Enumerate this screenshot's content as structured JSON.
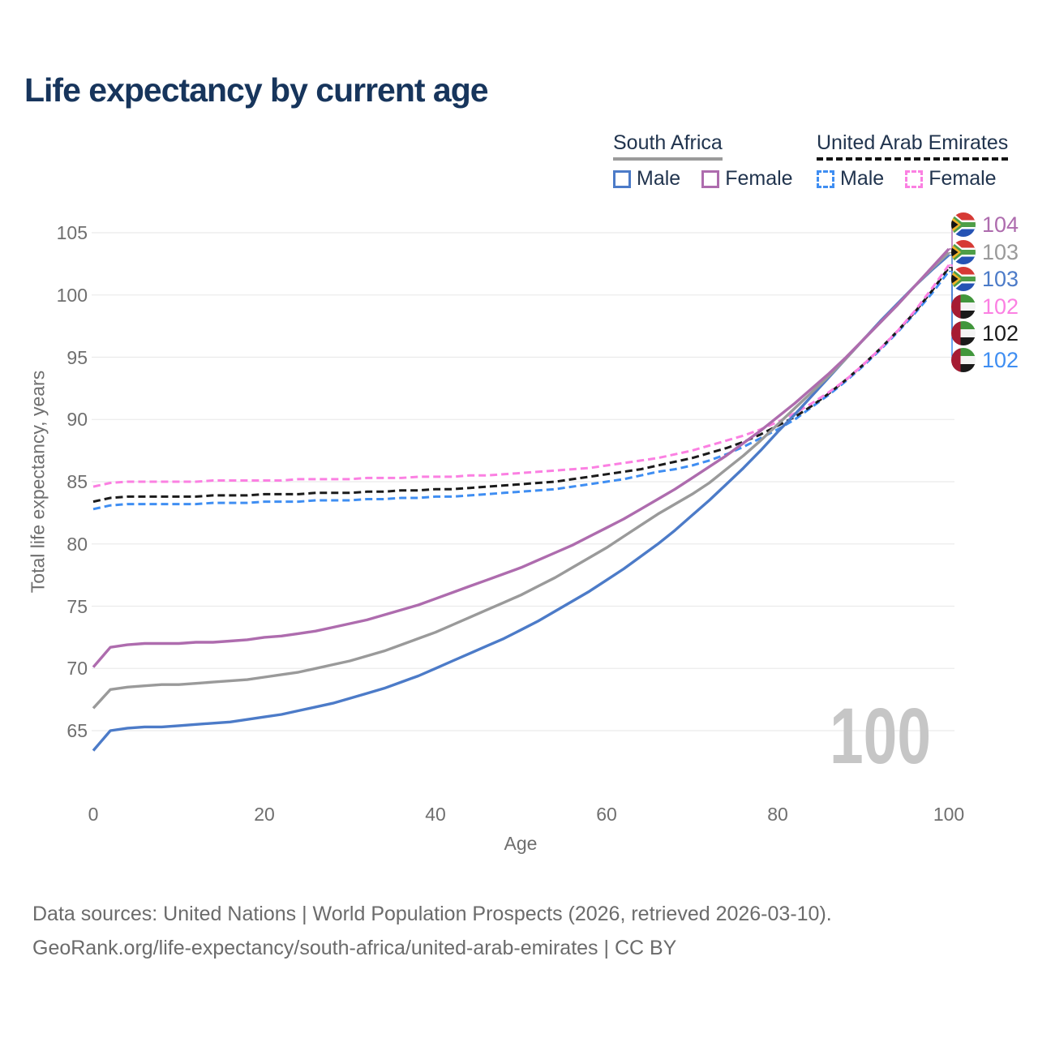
{
  "title": "Life expectancy by current age",
  "colors": {
    "title_text": "#17355c",
    "legend_text": "#21344e",
    "axis_text": "#6f6f6f",
    "footer_text": "#6b6b6b",
    "grid": "#ebebeb",
    "watermark": "#c6c6c6",
    "sa_male": "#4c7bc8",
    "sa_female": "#ae6cae",
    "sa_total": "#9a9a9a",
    "uae_male": "#3f8ef2",
    "uae_female": "#fb80e2",
    "uae_total": "#1b1b1b"
  },
  "legend": {
    "sa": {
      "title": "South Africa",
      "male_label": "Male",
      "female_label": "Female",
      "underline_color": "#9a9a9a",
      "underline_style": "solid"
    },
    "uae": {
      "title": "United Arab Emirates",
      "male_label": "Male",
      "female_label": "Female",
      "underline_color": "#141414",
      "underline_style": "dashed"
    }
  },
  "chart_data": {
    "type": "line",
    "title": "Life expectancy by current age",
    "xlabel": "Age",
    "ylabel": "Total life expectancy, years",
    "xlim": [
      0,
      100
    ],
    "ylim": [
      62,
      106
    ],
    "xticks": [
      0,
      20,
      40,
      60,
      80,
      100
    ],
    "yticks": [
      65,
      70,
      75,
      80,
      85,
      90,
      95,
      100,
      105
    ],
    "grid": true,
    "legend_position": "top-right",
    "watermark": "100",
    "x_start": 0,
    "x_step": 2,
    "series": [
      {
        "id": "sa-female",
        "name": "South Africa — Female",
        "country": "South Africa",
        "sex": "Female",
        "color": "#ae6cae",
        "style": "solid",
        "flag": "za",
        "end_label": "104",
        "values": [
          70.1,
          71.7,
          71.9,
          72.0,
          72.0,
          72.0,
          72.1,
          72.1,
          72.2,
          72.3,
          72.5,
          72.6,
          72.8,
          73.0,
          73.3,
          73.6,
          73.9,
          74.3,
          74.7,
          75.1,
          75.6,
          76.1,
          76.6,
          77.1,
          77.6,
          78.1,
          78.7,
          79.3,
          79.9,
          80.6,
          81.3,
          82.0,
          82.8,
          83.6,
          84.4,
          85.3,
          86.2,
          87.1,
          88.1,
          89.1,
          90.2,
          91.3,
          92.5,
          93.7,
          95.0,
          96.4,
          97.8,
          99.2,
          100.7,
          102.2,
          103.7
        ]
      },
      {
        "id": "sa-total",
        "name": "South Africa — Both sexes",
        "country": "South Africa",
        "sex": "Both",
        "color": "#9a9a9a",
        "style": "solid",
        "flag": "za",
        "end_label": "103",
        "values": [
          66.8,
          68.3,
          68.5,
          68.6,
          68.7,
          68.7,
          68.8,
          68.9,
          69.0,
          69.1,
          69.3,
          69.5,
          69.7,
          70.0,
          70.3,
          70.6,
          71.0,
          71.4,
          71.9,
          72.4,
          72.9,
          73.5,
          74.1,
          74.7,
          75.3,
          75.9,
          76.6,
          77.3,
          78.1,
          78.9,
          79.7,
          80.6,
          81.5,
          82.4,
          83.2,
          84.0,
          84.9,
          86.0,
          87.1,
          88.3,
          89.6,
          90.9,
          92.2,
          93.5,
          94.9,
          96.4,
          97.8,
          99.2,
          100.7,
          102.1,
          103.4
        ]
      },
      {
        "id": "sa-male",
        "name": "South Africa — Male",
        "country": "South Africa",
        "sex": "Male",
        "color": "#4c7bc8",
        "style": "solid",
        "flag": "za",
        "end_label": "103",
        "values": [
          63.4,
          65.0,
          65.2,
          65.3,
          65.3,
          65.4,
          65.5,
          65.6,
          65.7,
          65.9,
          66.1,
          66.3,
          66.6,
          66.9,
          67.2,
          67.6,
          68.0,
          68.4,
          68.9,
          69.4,
          70.0,
          70.6,
          71.2,
          71.8,
          72.4,
          73.1,
          73.8,
          74.6,
          75.4,
          76.2,
          77.1,
          78.0,
          79.0,
          80.0,
          81.1,
          82.3,
          83.5,
          84.8,
          86.1,
          87.5,
          89.0,
          90.4,
          91.9,
          93.4,
          94.9,
          96.4,
          97.9,
          99.3,
          100.7,
          102.0,
          103.2
        ]
      },
      {
        "id": "uae-female",
        "name": "United Arab Emirates — Female",
        "country": "United Arab Emirates",
        "sex": "Female",
        "color": "#fb80e2",
        "style": "dashed",
        "flag": "ae",
        "end_label": "102",
        "values": [
          84.6,
          84.9,
          85.0,
          85.0,
          85.0,
          85.0,
          85.0,
          85.1,
          85.1,
          85.1,
          85.1,
          85.1,
          85.2,
          85.2,
          85.2,
          85.2,
          85.3,
          85.3,
          85.3,
          85.4,
          85.4,
          85.4,
          85.5,
          85.5,
          85.6,
          85.7,
          85.8,
          85.9,
          86.0,
          86.1,
          86.3,
          86.5,
          86.7,
          86.9,
          87.2,
          87.5,
          87.9,
          88.3,
          88.7,
          89.2,
          89.8,
          90.5,
          91.3,
          92.2,
          93.2,
          94.4,
          95.7,
          97.1,
          98.7,
          100.5,
          102.4
        ]
      },
      {
        "id": "uae-total",
        "name": "United Arab Emirates — Both sexes",
        "country": "United Arab Emirates",
        "sex": "Both",
        "color": "#1b1b1b",
        "style": "dashed",
        "flag": "ae",
        "end_label": "102",
        "values": [
          83.4,
          83.7,
          83.8,
          83.8,
          83.8,
          83.8,
          83.8,
          83.9,
          83.9,
          83.9,
          84.0,
          84.0,
          84.0,
          84.1,
          84.1,
          84.1,
          84.2,
          84.2,
          84.3,
          84.3,
          84.4,
          84.4,
          84.5,
          84.6,
          84.7,
          84.8,
          84.9,
          85.0,
          85.2,
          85.4,
          85.6,
          85.8,
          86.0,
          86.3,
          86.6,
          86.9,
          87.3,
          87.7,
          88.2,
          88.8,
          89.5,
          90.2,
          91.1,
          92.1,
          93.2,
          94.4,
          95.7,
          97.1,
          98.6,
          100.3,
          102.2
        ]
      },
      {
        "id": "uae-male",
        "name": "United Arab Emirates — Male",
        "country": "United Arab Emirates",
        "sex": "Male",
        "color": "#3f8ef2",
        "style": "dashed",
        "flag": "ae",
        "end_label": "102",
        "values": [
          82.8,
          83.1,
          83.2,
          83.2,
          83.2,
          83.2,
          83.2,
          83.3,
          83.3,
          83.3,
          83.4,
          83.4,
          83.4,
          83.5,
          83.5,
          83.5,
          83.6,
          83.6,
          83.7,
          83.7,
          83.8,
          83.8,
          83.9,
          84.0,
          84.1,
          84.2,
          84.3,
          84.4,
          84.6,
          84.8,
          85.0,
          85.2,
          85.5,
          85.8,
          86.0,
          86.3,
          86.7,
          87.2,
          87.8,
          88.5,
          89.2,
          90.0,
          91.0,
          92.0,
          93.1,
          94.3,
          95.6,
          97.0,
          98.5,
          100.1,
          101.9
        ]
      }
    ]
  },
  "footer": {
    "line1": "Data sources: United Nations | World Population Prospects (2026, retrieved 2026-03-10).",
    "line2": "GeoRank.org/life-expectancy/south-africa/united-arab-emirates | CC BY"
  }
}
